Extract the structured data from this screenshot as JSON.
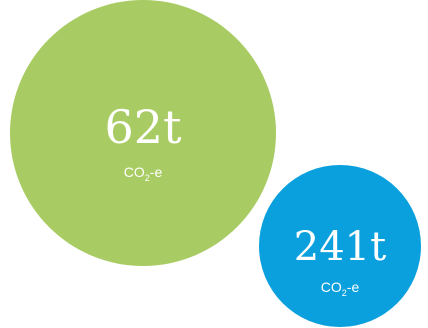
{
  "chart_data": {
    "type": "bubble",
    "unit_label": "CO2-e",
    "bubbles": [
      {
        "value": 62,
        "label": "62t",
        "unit_main": "CO",
        "unit_sub": "2",
        "unit_suffix": "-e",
        "color": "#a8cc63"
      },
      {
        "value": 241,
        "label": "241t",
        "unit_main": "CO",
        "unit_sub": "2",
        "unit_suffix": "-e",
        "color": "#0aa0de"
      }
    ]
  }
}
